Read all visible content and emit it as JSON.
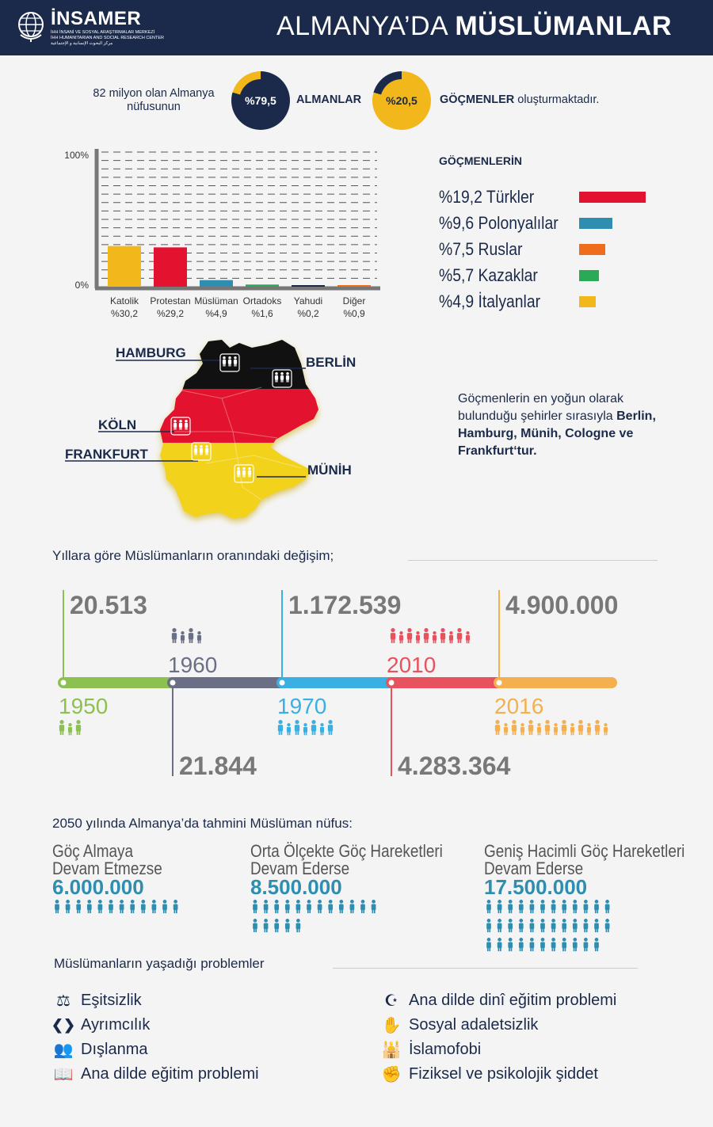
{
  "header": {
    "logo_name": "İNSAMER",
    "logo_sub1": "İHH İNSANİ VE SOSYAL ARAŞTIRMALAR MERKEZİ",
    "logo_sub2": "İHH HUMANITARIAN AND SOCIAL RESEARCH CENTER",
    "logo_sub3": "مركز البحوث الإنسانية و الإجتماعية",
    "title_light": "ALMANYA’DA ",
    "title_bold": "MÜSLÜMANLAR"
  },
  "population": {
    "intro": "82 milyon olan Almanya nüfusunun",
    "germans_percent": "%79,5",
    "germans_label": "ALMANLAR",
    "germans_share": 79.5,
    "migrants_percent": "%20,5",
    "migrants_label": "GÖÇMENLER",
    "migrants_suffix": " oluşturmaktadır.",
    "migrants_share": 20.5,
    "colors": {
      "germans": "#1b2a4a",
      "migrants": "#f2b81b"
    }
  },
  "chart_data": {
    "type": "bar",
    "categories": [
      "Katolik",
      "Protestan",
      "Müslüman",
      "Ortadoks",
      "Yahudi",
      "Diğer"
    ],
    "value_labels": [
      "%30,2",
      "%29,2",
      "%4,9",
      "%1,6",
      "%0,2",
      "%0,9"
    ],
    "values": [
      30.2,
      29.2,
      4.9,
      1.6,
      0.2,
      0.9
    ],
    "colors": [
      "#f2b81b",
      "#e3122e",
      "#2f8eb0",
      "#2aa956",
      "#1b2a4a",
      "#ef6c1a"
    ],
    "y_tick_labels": [
      "100%",
      "0%"
    ],
    "ylim": [
      0,
      100
    ],
    "grid": true
  },
  "origins": {
    "title": "GÖÇMENLERİN",
    "items": [
      {
        "percent": "%19,2",
        "name": "Türkler",
        "value": 19.2,
        "color": "#e3122e"
      },
      {
        "percent": "%9,6",
        "name": "Polonyalılar",
        "value": 9.6,
        "color": "#2f8eb0"
      },
      {
        "percent": "%7,5",
        "name": "Ruslar",
        "value": 7.5,
        "color": "#ef6c1a"
      },
      {
        "percent": "%5,7",
        "name": "Kazaklar",
        "value": 5.7,
        "color": "#2aa956"
      },
      {
        "percent": "%4,9",
        "name": "İtalyanlar",
        "value": 4.9,
        "color": "#f2b81b"
      }
    ]
  },
  "map": {
    "cities": [
      "HAMBURG",
      "BERLİN",
      "KÖLN",
      "FRANKFURT",
      "MÜNİH"
    ],
    "text_prefix": "Göçmenlerin en yoğun olarak bulunduğu şehirler sırasıyla ",
    "text_bold": "Berlin, Hamburg, Münih, Cologne ve Frankfurt‘tur.",
    "flag_colors": [
      "#111111",
      "#e3122e",
      "#f2d21b"
    ]
  },
  "timeline": {
    "heading": "Yıllara göre Müslümanların oranındaki değişim;",
    "points": [
      {
        "year": "1950",
        "value": "20.513",
        "color": "#8cc152",
        "people": 3
      },
      {
        "year": "1960",
        "value": "21.844",
        "color": "#6b6f85",
        "people": 4
      },
      {
        "year": "1970",
        "value": "1.172.539",
        "color": "#3ab0e2",
        "people": 7
      },
      {
        "year": "2010",
        "value": "4.283.364",
        "color": "#e8515e",
        "people": 10
      },
      {
        "year": "2016",
        "value": "4.900.000",
        "color": "#f4b04e",
        "people": 14
      }
    ]
  },
  "projection": {
    "heading": "2050 yılında Almanya’da tahmini Müslüman nüfus:",
    "scenarios": [
      {
        "line1": "Göç Almaya",
        "line2": "Devam Etmezse",
        "value": "6.000.000",
        "people": 12
      },
      {
        "line1": "Orta Ölçekte Göç Hareketleri",
        "line2": "Devam Ederse",
        "value": "8.500.000",
        "people": 17
      },
      {
        "line1": "Geniş Hacimli Göç Hareketleri",
        "line2": "Devam Ederse",
        "value": "17.500.000",
        "people": 35
      }
    ],
    "color": "#2f8eb0"
  },
  "problems": {
    "heading": "Müslümanların yaşadığı problemler",
    "left": [
      {
        "label": "Eşitsizlik",
        "icon": "scales-icon"
      },
      {
        "label": "Ayrımcılık",
        "icon": "angle-brackets-icon"
      },
      {
        "label": "Dışlanma",
        "icon": "people-group-icon"
      },
      {
        "label": "Ana dilde eğitim problemi",
        "icon": "open-book-icon"
      }
    ],
    "right": [
      {
        "label": "Ana dilde dinî eğitim problemi",
        "icon": "crescent-book-icon"
      },
      {
        "label": "Sosyal adaletsizlik",
        "icon": "raised-hand-icon"
      },
      {
        "label": "İslamofobi",
        "icon": "mosque-icon"
      },
      {
        "label": "Fiziksel ve psikolojik şiddet",
        "icon": "fist-impact-icon"
      }
    ]
  }
}
